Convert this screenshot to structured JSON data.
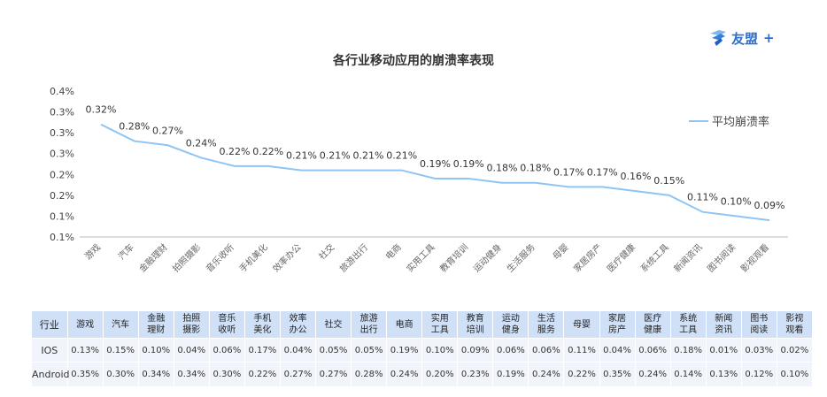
{
  "logo": {
    "brand": "友盟",
    "plus": "+"
  },
  "chart_data": {
    "type": "line",
    "title": "各行业移动应用的崩溃率表现",
    "categories": [
      "游戏",
      "汽车",
      "金融理财",
      "拍照摄影",
      "音乐收听",
      "手机美化",
      "效率办公",
      "社交",
      "旅游出行",
      "电商",
      "实用工具",
      "教育培训",
      "运动健身",
      "生活服务",
      "母婴",
      "家居房产",
      "医疗健康",
      "系统工具",
      "新闻资讯",
      "图书阅读",
      "影视观看"
    ],
    "series": [
      {
        "name": "平均崩溃率",
        "color": "#8ec5f2",
        "values": [
          0.32,
          0.28,
          0.27,
          0.24,
          0.22,
          0.22,
          0.21,
          0.21,
          0.21,
          0.21,
          0.19,
          0.19,
          0.18,
          0.18,
          0.17,
          0.17,
          0.16,
          0.15,
          0.11,
          0.1,
          0.09
        ],
        "labels": [
          "0.32%",
          "0.28%",
          "0.27%",
          "0.24%",
          "0.22%",
          "0.22%",
          "0.21%",
          "0.21%",
          "0.21%",
          "0.21%",
          "0.19%",
          "0.19%",
          "0.18%",
          "0.18%",
          "0.17%",
          "0.17%",
          "0.16%",
          "0.15%",
          "0.11%",
          "0.10%",
          "0.09%"
        ]
      }
    ],
    "ylim": [
      0.05,
      0.4
    ],
    "yticks": [
      0.05,
      0.1,
      0.15,
      0.2,
      0.25,
      0.3,
      0.35,
      0.4
    ],
    "ytick_labels": [
      "0.1%",
      "0.1%",
      "0.2%",
      "0.2%",
      "0.3%",
      "0.3%",
      "0.3%",
      "0.4%"
    ],
    "legend": "top-right",
    "grid": false
  },
  "table": {
    "header": [
      "行业",
      "游戏",
      "汽车",
      "金融\n理财",
      "拍照\n摄影",
      "音乐\n收听",
      "手机\n美化",
      "效率\n办公",
      "社交",
      "旅游\n出行",
      "电商",
      "实用\n工具",
      "教育\n培训",
      "运动\n健身",
      "生活\n服务",
      "母婴",
      "家居\n房产",
      "医疗\n健康",
      "系统\n工具",
      "新闻\n资讯",
      "图书\n阅读",
      "影视\n观看"
    ],
    "rows": [
      {
        "name": "IOS",
        "values": [
          "0.13%",
          "0.15%",
          "0.10%",
          "0.04%",
          "0.06%",
          "0.17%",
          "0.04%",
          "0.05%",
          "0.05%",
          "0.19%",
          "0.10%",
          "0.09%",
          "0.06%",
          "0.06%",
          "0.11%",
          "0.04%",
          "0.06%",
          "0.18%",
          "0.01%",
          "0.03%",
          "0.02%"
        ]
      },
      {
        "name": "Android",
        "values": [
          "0.35%",
          "0.30%",
          "0.34%",
          "0.34%",
          "0.30%",
          "0.22%",
          "0.27%",
          "0.27%",
          "0.28%",
          "0.24%",
          "0.20%",
          "0.23%",
          "0.19%",
          "0.24%",
          "0.22%",
          "0.35%",
          "0.24%",
          "0.14%",
          "0.13%",
          "0.12%",
          "0.10%"
        ]
      }
    ]
  }
}
